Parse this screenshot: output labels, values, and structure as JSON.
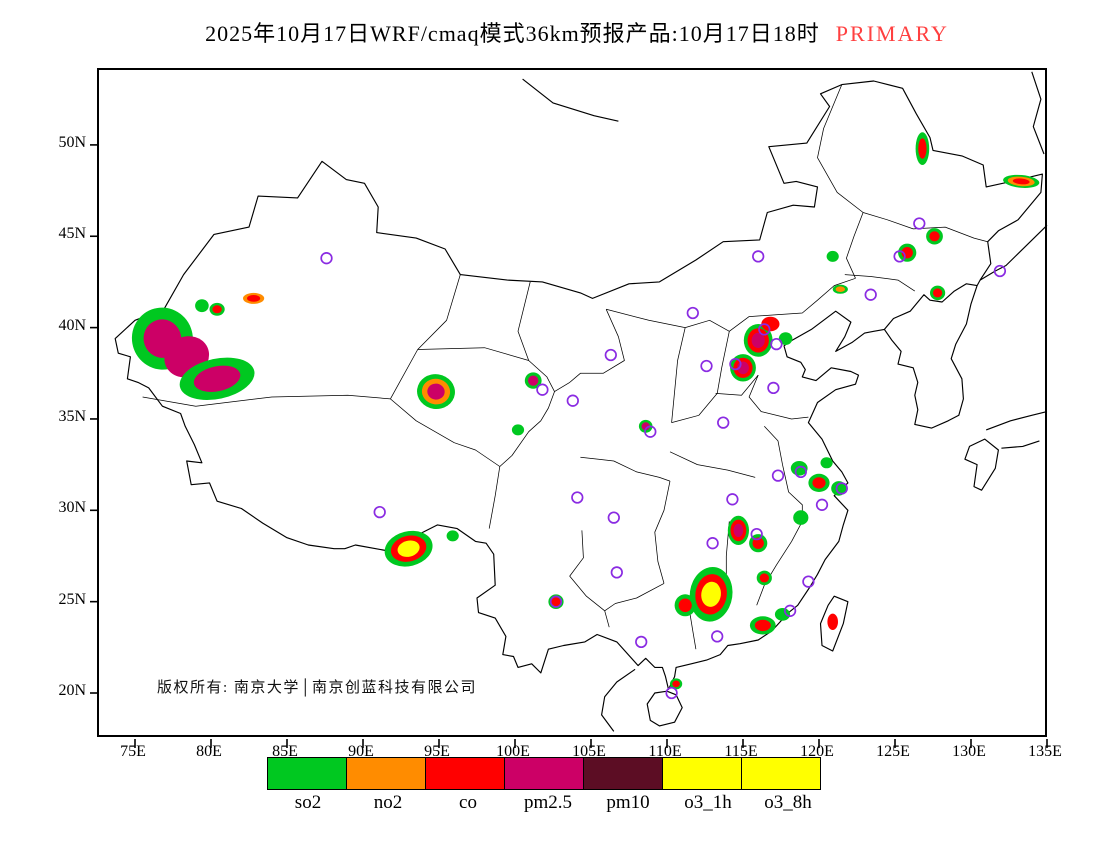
{
  "title": {
    "main": "2025年10月17日WRF/cmaq模式36km预报产品:10月17日18时",
    "highlight": "PRIMARY"
  },
  "colors": {
    "highlight": "#ff4040",
    "marker": "#8a2be2",
    "frame": "#000000"
  },
  "map": {
    "copyright": "版权所有: 南京大学│南京创蓝科技有限公司"
  },
  "axes": {
    "y_labels": [
      "50N",
      "45N",
      "40N",
      "35N",
      "30N",
      "25N",
      "20N"
    ],
    "x_labels": [
      "75E",
      "80E",
      "85E",
      "90E",
      "95E",
      "100E",
      "105E",
      "110E",
      "115E",
      "120E",
      "125E",
      "130E",
      "135E"
    ]
  },
  "legend": {
    "items": [
      {
        "label": "so2",
        "color": "#00c820"
      },
      {
        "label": "no2",
        "color": "#ff8c00"
      },
      {
        "label": "co",
        "color": "#ff0000"
      },
      {
        "label": "pm2.5",
        "color": "#cc0066"
      },
      {
        "label": "pm10",
        "color": "#5c0d24"
      },
      {
        "label": "o3_1h",
        "color": "#ffff00"
      },
      {
        "label": "o3_8h",
        "color": "#ffff00"
      }
    ]
  },
  "chart_data": {
    "type": "map",
    "lon_range": [
      72.6,
      135.1
    ],
    "lat_range": [
      17.5,
      54.1
    ],
    "palette": {
      "so2": "#00c820",
      "no2": "#ff8c00",
      "co": "#ff0000",
      "pm2.5": "#cc0066",
      "pm10": "#5c0d24",
      "o3_1h": "#ffff00",
      "o3_8h": "#ffff00"
    },
    "patches": [
      {
        "lon": 76.8,
        "lat": 39.4,
        "rx": 2.0,
        "ry": 1.7,
        "rot": -20,
        "layers": [
          "so2",
          "pm2.5"
        ]
      },
      {
        "lon": 78.4,
        "lat": 38.4,
        "rx": 1.5,
        "ry": 1.1,
        "rot": -25,
        "layers": [
          "pm2.5"
        ]
      },
      {
        "lon": 80.4,
        "lat": 37.2,
        "rx": 2.5,
        "ry": 1.1,
        "rot": -12,
        "layers": [
          "so2",
          "pm2.5"
        ]
      },
      {
        "lon": 79.4,
        "lat": 41.2,
        "rx": 0.45,
        "ry": 0.35,
        "rot": 0,
        "layers": [
          "so2"
        ]
      },
      {
        "lon": 80.4,
        "lat": 41.0,
        "rx": 0.5,
        "ry": 0.35,
        "rot": 0,
        "layers": [
          "so2",
          "co"
        ]
      },
      {
        "lon": 82.8,
        "lat": 41.6,
        "rx": 0.7,
        "ry": 0.3,
        "rot": 0,
        "layers": [
          "no2",
          "co"
        ]
      },
      {
        "lon": 94.8,
        "lat": 36.5,
        "rx": 1.25,
        "ry": 0.95,
        "rot": 8,
        "layers": [
          "so2",
          "no2",
          "pm2.5"
        ]
      },
      {
        "lon": 101.2,
        "lat": 37.1,
        "rx": 0.55,
        "ry": 0.45,
        "rot": 0,
        "layers": [
          "so2",
          "pm2.5"
        ]
      },
      {
        "lon": 100.2,
        "lat": 34.4,
        "rx": 0.4,
        "ry": 0.3,
        "rot": 0,
        "layers": [
          "so2"
        ]
      },
      {
        "lon": 93.0,
        "lat": 27.9,
        "rx": 1.6,
        "ry": 0.95,
        "rot": -14,
        "layers": [
          "so2",
          "co",
          "o3_1h"
        ]
      },
      {
        "lon": 95.9,
        "lat": 28.6,
        "rx": 0.4,
        "ry": 0.3,
        "rot": 0,
        "layers": [
          "so2"
        ]
      },
      {
        "lon": 102.7,
        "lat": 25.0,
        "rx": 0.5,
        "ry": 0.4,
        "rot": 0,
        "layers": [
          "so2",
          "co"
        ]
      },
      {
        "lon": 108.6,
        "lat": 34.6,
        "rx": 0.45,
        "ry": 0.35,
        "rot": 0,
        "layers": [
          "so2",
          "pm2.5"
        ]
      },
      {
        "lon": 115.0,
        "lat": 37.8,
        "rx": 0.85,
        "ry": 0.75,
        "rot": 0,
        "layers": [
          "so2",
          "co",
          "pm2.5"
        ]
      },
      {
        "lon": 116.0,
        "lat": 39.3,
        "rx": 0.95,
        "ry": 0.9,
        "rot": 0,
        "layers": [
          "so2",
          "co",
          "pm2.5"
        ]
      },
      {
        "lon": 116.8,
        "lat": 40.2,
        "rx": 0.6,
        "ry": 0.4,
        "rot": 0,
        "layers": [
          "co"
        ]
      },
      {
        "lon": 117.8,
        "lat": 39.4,
        "rx": 0.45,
        "ry": 0.35,
        "rot": 0,
        "layers": [
          "so2"
        ]
      },
      {
        "lon": 120.9,
        "lat": 43.9,
        "rx": 0.4,
        "ry": 0.3,
        "rot": 0,
        "layers": [
          "so2"
        ]
      },
      {
        "lon": 121.4,
        "lat": 42.1,
        "rx": 0.5,
        "ry": 0.25,
        "rot": 0,
        "layers": [
          "so2",
          "no2"
        ]
      },
      {
        "lon": 125.8,
        "lat": 44.1,
        "rx": 0.6,
        "ry": 0.5,
        "rot": 0,
        "layers": [
          "so2",
          "co"
        ]
      },
      {
        "lon": 127.6,
        "lat": 45.0,
        "rx": 0.55,
        "ry": 0.45,
        "rot": 0,
        "layers": [
          "so2",
          "co"
        ]
      },
      {
        "lon": 127.8,
        "lat": 41.9,
        "rx": 0.5,
        "ry": 0.4,
        "rot": 0,
        "layers": [
          "so2",
          "co"
        ]
      },
      {
        "lon": 126.8,
        "lat": 49.8,
        "rx": 0.45,
        "ry": 0.9,
        "rot": 0,
        "layers": [
          "so2",
          "co"
        ]
      },
      {
        "lon": 133.3,
        "lat": 48.0,
        "rx": 1.2,
        "ry": 0.35,
        "rot": 5,
        "layers": [
          "so2",
          "no2",
          "co"
        ]
      },
      {
        "lon": 118.7,
        "lat": 32.3,
        "rx": 0.55,
        "ry": 0.4,
        "rot": 0,
        "layers": [
          "so2"
        ]
      },
      {
        "lon": 120.0,
        "lat": 31.5,
        "rx": 0.7,
        "ry": 0.5,
        "rot": 0,
        "layers": [
          "so2",
          "co"
        ]
      },
      {
        "lon": 121.3,
        "lat": 31.2,
        "rx": 0.5,
        "ry": 0.4,
        "rot": 0,
        "layers": [
          "so2"
        ]
      },
      {
        "lon": 118.8,
        "lat": 29.6,
        "rx": 0.5,
        "ry": 0.4,
        "rot": 0,
        "layers": [
          "so2"
        ]
      },
      {
        "lon": 120.5,
        "lat": 32.6,
        "rx": 0.4,
        "ry": 0.3,
        "rot": 0,
        "layers": [
          "so2"
        ]
      },
      {
        "lon": 114.7,
        "lat": 28.9,
        "rx": 0.7,
        "ry": 0.8,
        "rot": 0,
        "layers": [
          "so2",
          "co",
          "pm2.5"
        ]
      },
      {
        "lon": 116.0,
        "lat": 28.2,
        "rx": 0.6,
        "ry": 0.5,
        "rot": 0,
        "layers": [
          "so2",
          "co"
        ]
      },
      {
        "lon": 112.9,
        "lat": 25.4,
        "rx": 1.4,
        "ry": 1.5,
        "rot": 8,
        "layers": [
          "so2",
          "co",
          "o3_1h"
        ]
      },
      {
        "lon": 111.2,
        "lat": 24.8,
        "rx": 0.7,
        "ry": 0.6,
        "rot": 0,
        "layers": [
          "so2",
          "co"
        ]
      },
      {
        "lon": 116.3,
        "lat": 23.7,
        "rx": 0.85,
        "ry": 0.5,
        "rot": 0,
        "layers": [
          "so2",
          "co"
        ]
      },
      {
        "lon": 117.6,
        "lat": 24.3,
        "rx": 0.5,
        "ry": 0.35,
        "rot": 0,
        "layers": [
          "so2"
        ]
      },
      {
        "lon": 116.4,
        "lat": 26.3,
        "rx": 0.5,
        "ry": 0.4,
        "rot": 0,
        "layers": [
          "so2",
          "co"
        ]
      },
      {
        "lon": 110.6,
        "lat": 20.5,
        "rx": 0.4,
        "ry": 0.3,
        "rot": 0,
        "layers": [
          "so2",
          "co"
        ]
      },
      {
        "lon": 120.9,
        "lat": 23.9,
        "rx": 0.35,
        "ry": 0.45,
        "rot": 0,
        "layers": [
          "co"
        ]
      }
    ],
    "city_markers": [
      [
        87.6,
        43.8
      ],
      [
        91.1,
        29.9
      ],
      [
        101.8,
        36.6
      ],
      [
        103.8,
        36.0
      ],
      [
        106.3,
        38.5
      ],
      [
        111.7,
        40.8
      ],
      [
        116.0,
        43.9
      ],
      [
        108.9,
        34.3
      ],
      [
        104.1,
        30.7
      ],
      [
        106.5,
        29.6
      ],
      [
        106.7,
        26.6
      ],
      [
        102.7,
        25.0
      ],
      [
        108.3,
        22.8
      ],
      [
        110.3,
        20.0
      ],
      [
        113.3,
        23.1
      ],
      [
        113.0,
        28.2
      ],
      [
        114.3,
        30.6
      ],
      [
        115.9,
        28.7
      ],
      [
        119.3,
        26.1
      ],
      [
        118.1,
        24.5
      ],
      [
        120.2,
        30.3
      ],
      [
        121.5,
        31.2
      ],
      [
        118.8,
        32.1
      ],
      [
        117.3,
        31.9
      ],
      [
        117.0,
        36.7
      ],
      [
        113.7,
        34.8
      ],
      [
        112.6,
        37.9
      ],
      [
        114.5,
        38.0
      ],
      [
        116.4,
        39.9
      ],
      [
        117.2,
        39.1
      ],
      [
        123.4,
        41.8
      ],
      [
        125.3,
        43.9
      ],
      [
        126.6,
        45.7
      ],
      [
        131.9,
        43.1
      ]
    ]
  }
}
